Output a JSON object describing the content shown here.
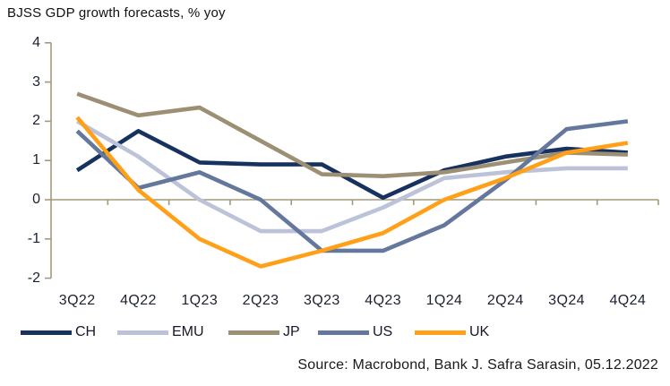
{
  "title": "BJSS GDP growth forecasts, % yoy",
  "source": "Source: Macrobond, Bank J. Safra Sarasin, 05.12.2022",
  "colors": {
    "axis": "#a39a7c",
    "tick_text": "#1b2130",
    "title_text": "#111111",
    "source_text": "#1a1a1a"
  },
  "chart_data": {
    "type": "line",
    "title": "BJSS GDP growth forecasts, % yoy",
    "xlabel": "",
    "ylabel": "% yoy",
    "ylim": [
      -2,
      4
    ],
    "yticks": [
      4,
      3,
      2,
      1,
      0,
      -1,
      -2
    ],
    "grid": "zero-line-only",
    "legend_position": "bottom",
    "categories": [
      "3Q22",
      "4Q22",
      "1Q23",
      "2Q23",
      "3Q23",
      "4Q23",
      "1Q24",
      "2Q24",
      "3Q24",
      "4Q24"
    ],
    "series": [
      {
        "name": "CH",
        "color": "#17325e",
        "values": [
          0.75,
          1.75,
          0.95,
          0.9,
          0.9,
          0.05,
          0.75,
          1.1,
          1.3,
          1.2
        ]
      },
      {
        "name": "EMU",
        "color": "#bcc3d8",
        "values": [
          2.0,
          1.1,
          0.0,
          -0.8,
          -0.8,
          -0.2,
          0.55,
          0.7,
          0.8,
          0.8
        ]
      },
      {
        "name": "JP",
        "color": "#9c8f73",
        "values": [
          2.7,
          2.15,
          2.35,
          1.5,
          0.65,
          0.6,
          0.7,
          0.95,
          1.2,
          1.15
        ]
      },
      {
        "name": "US",
        "color": "#64779c",
        "values": [
          1.75,
          0.3,
          0.7,
          0.0,
          -1.3,
          -1.3,
          -0.65,
          0.5,
          1.8,
          2.0
        ]
      },
      {
        "name": "UK",
        "color": "#ffa018",
        "values": [
          2.1,
          0.25,
          -1.0,
          -1.7,
          -1.3,
          -0.85,
          0.0,
          0.55,
          1.2,
          1.45
        ]
      }
    ]
  }
}
